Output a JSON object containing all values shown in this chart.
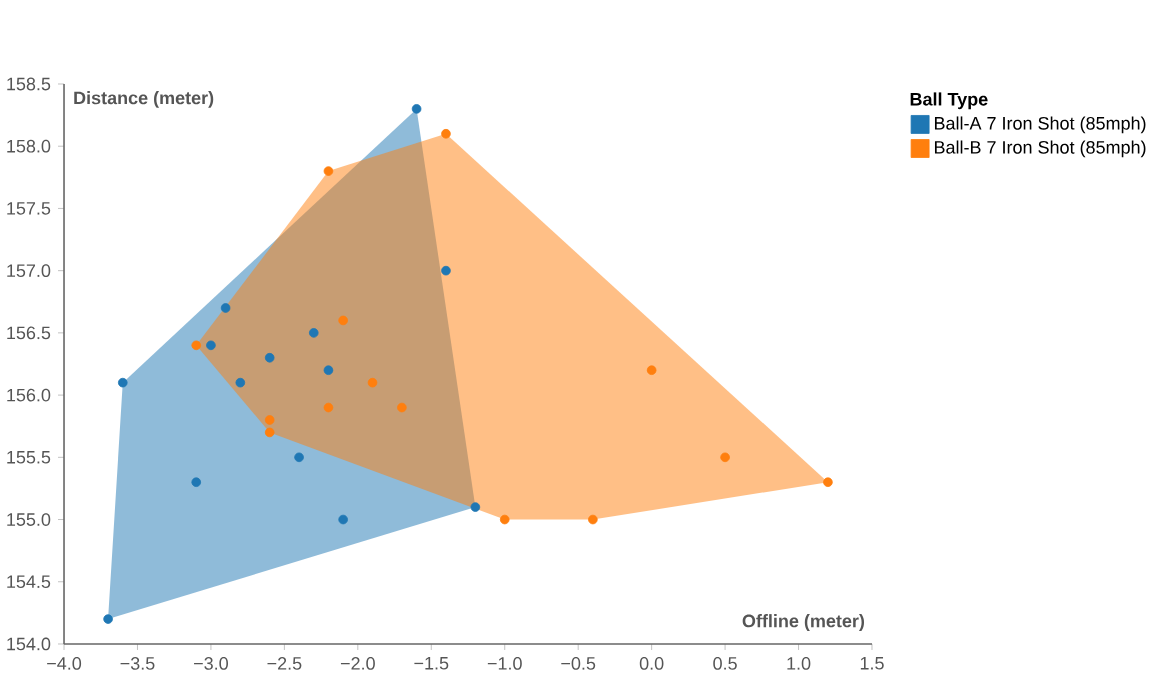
{
  "chart_data": {
    "type": "scatter",
    "xlabel": "Offline (meter)",
    "ylabel": "Distance (meter)",
    "legend_title": "Ball Type",
    "legend": "top right",
    "grid": false,
    "xlim": [
      -4,
      1.5
    ],
    "ylim": [
      154,
      158.5
    ],
    "xticks": [
      {
        "value": -4,
        "label": "−4.0"
      },
      {
        "value": -3.5,
        "label": "−3.5"
      },
      {
        "value": -3,
        "label": "−3.0"
      },
      {
        "value": -2.5,
        "label": "−2.5"
      },
      {
        "value": -2,
        "label": "−2.0"
      },
      {
        "value": -1.5,
        "label": "−1.5"
      },
      {
        "value": -1,
        "label": "−1.0"
      },
      {
        "value": -0.5,
        "label": "−0.5"
      },
      {
        "value": 0,
        "label": "0.0"
      },
      {
        "value": 0.5,
        "label": "0.5"
      },
      {
        "value": 1,
        "label": "1.0"
      },
      {
        "value": 1.5,
        "label": "1.5"
      }
    ],
    "yticks": [
      {
        "value": 154,
        "label": "154.0"
      },
      154.5,
      {
        "value": 155,
        "label": "155.0"
      },
      155.5,
      {
        "value": 156,
        "label": "156.0"
      },
      156.5,
      {
        "value": 157,
        "label": "157.0"
      },
      157.5,
      {
        "value": 158,
        "label": "158.0"
      },
      158.5
    ],
    "series": [
      {
        "type": "area",
        "marker": "none",
        "color": "#1f77b4",
        "x": [
          -3.7,
          -1.2,
          -1.6,
          -3.6
        ],
        "values": [
          154.2,
          155.1,
          158.3,
          156.1
        ]
      },
      {
        "type": "area",
        "marker": "none",
        "color": "#ff7f0e",
        "x": [
          -3.1,
          -2.6,
          -1.0,
          -0.4,
          1.2,
          -1.4,
          -2.2
        ],
        "values": [
          156.4,
          155.7,
          155.0,
          155.0,
          155.3,
          158.1,
          157.8
        ]
      },
      {
        "name": "Ball-A 7 Iron Shot (85mph)",
        "marker": "circle",
        "color": "#1f77b4",
        "x": [
          -1.6,
          -3.6,
          -3.1,
          -2.4,
          -2.1,
          -3.7,
          -1.2,
          -1.4,
          -2.9,
          -3.0,
          -2.3,
          -2.6,
          -2.8,
          -2.2
        ],
        "values": [
          158.3,
          156.1,
          155.3,
          155.5,
          155.0,
          154.2,
          155.1,
          157.0,
          156.7,
          156.4,
          156.5,
          156.3,
          156.1,
          156.2
        ]
      },
      {
        "name": "Ball-B 7 Iron Shot (85mph)",
        "marker": "circle",
        "color": "#ff7f0e",
        "x": [
          -2.2,
          -1.4,
          -3.1,
          -2.1,
          -1.9,
          -2.2,
          -1.7,
          -2.6,
          -2.6,
          0.0,
          0.5,
          1.2,
          -1.0,
          -0.4
        ],
        "values": [
          157.8,
          158.1,
          156.4,
          156.6,
          156.1,
          155.9,
          155.9,
          155.8,
          155.7,
          156.2,
          155.5,
          155.3,
          155.0,
          155.0
        ]
      }
    ]
  }
}
